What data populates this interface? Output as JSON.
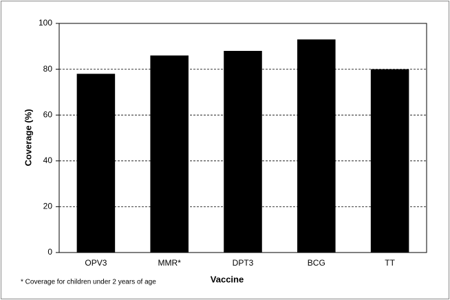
{
  "chart_data": {
    "type": "bar",
    "x_label": "Vaccine",
    "y_label": "Coverage (%)",
    "footnote": "* Coverage for children under 2 years of age",
    "categories": [
      "OPV3",
      "MMR*",
      "DPT3",
      "BCG",
      "TT"
    ],
    "values": [
      78,
      86,
      88,
      93,
      80
    ],
    "color": "#000000",
    "ylim": [
      0,
      100
    ],
    "yticks": [
      0,
      20,
      40,
      60,
      80,
      100
    ],
    "grid": true
  }
}
